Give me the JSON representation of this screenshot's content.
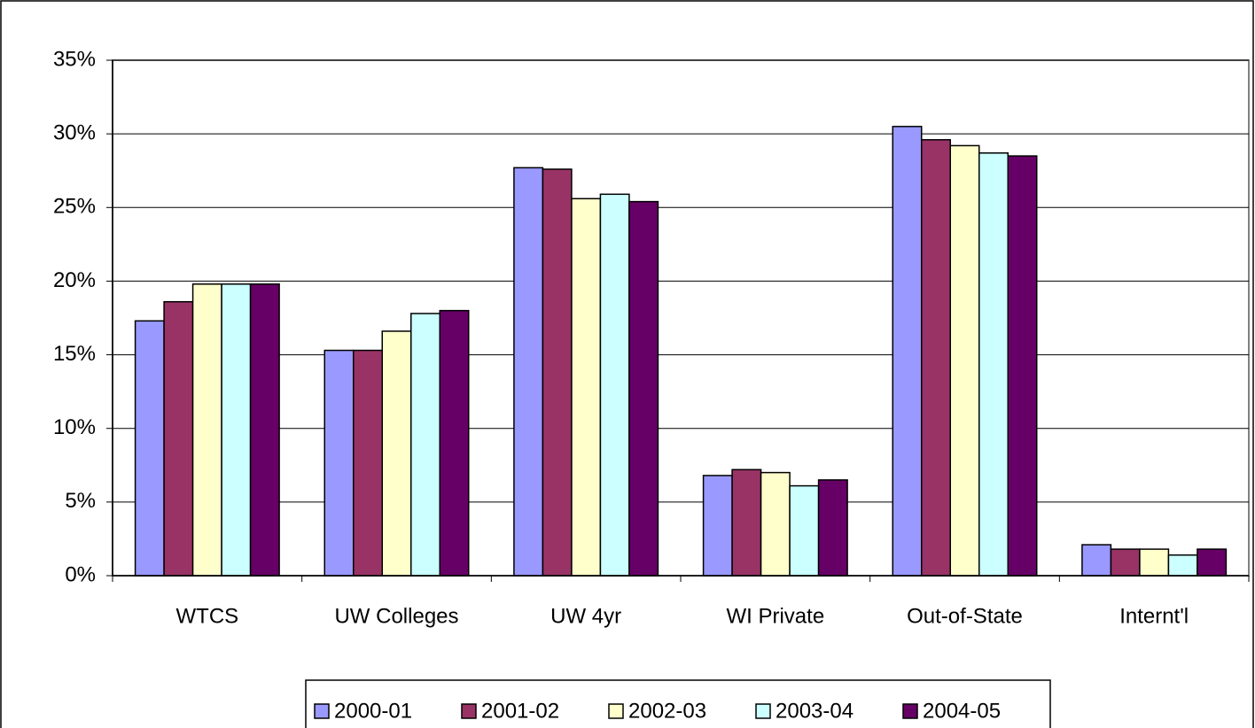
{
  "chart_data": {
    "type": "bar",
    "categories": [
      "WTCS",
      "UW Colleges",
      "UW 4yr",
      "WI Private",
      "Out-of-State",
      "Internt'l"
    ],
    "series": [
      {
        "name": "2000-01",
        "color": "#9999ff",
        "values": [
          17.3,
          15.3,
          27.7,
          6.8,
          30.5,
          2.1
        ]
      },
      {
        "name": "2001-02",
        "color": "#993366",
        "values": [
          18.6,
          15.3,
          27.6,
          7.2,
          29.6,
          1.8
        ]
      },
      {
        "name": "2002-03",
        "color": "#ffffcc",
        "values": [
          19.8,
          16.6,
          25.6,
          7.0,
          29.2,
          1.8
        ]
      },
      {
        "name": "2003-04",
        "color": "#ccffff",
        "values": [
          19.8,
          17.8,
          25.9,
          6.1,
          28.7,
          1.4
        ]
      },
      {
        "name": "2004-05",
        "color": "#660066",
        "values": [
          19.8,
          18.0,
          25.4,
          6.5,
          28.5,
          1.8
        ]
      }
    ],
    "ylim": [
      0,
      35
    ],
    "yticks": [
      {
        "value": 0,
        "label": "0%"
      },
      {
        "value": 5,
        "label": "5%"
      },
      {
        "value": 10,
        "label": "10%"
      },
      {
        "value": 15,
        "label": "15%"
      },
      {
        "value": 20,
        "label": "20%"
      },
      {
        "value": 25,
        "label": "25%"
      },
      {
        "value": 30,
        "label": "30%"
      },
      {
        "value": 35,
        "label": "35%"
      }
    ],
    "grid": true,
    "legend": "bottom"
  }
}
